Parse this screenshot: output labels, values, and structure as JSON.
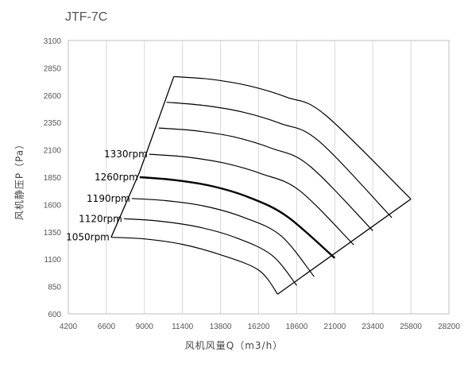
{
  "chart_data": {
    "type": "line",
    "title": "JTF-7C",
    "xlabel": "风机风量Q（m3/h）",
    "ylabel": "风机静压P（Pa）",
    "xlim": [
      4200,
      28200
    ],
    "ylim": [
      600,
      3100
    ],
    "xticks": [
      4200,
      6600,
      9000,
      11400,
      13800,
      16200,
      18600,
      21000,
      23400,
      25800,
      28200
    ],
    "yticks": [
      600,
      850,
      1100,
      1350,
      1600,
      1850,
      2100,
      2350,
      2600,
      2850,
      3100
    ],
    "grid": "vertical",
    "boundary": [
      [
        6900,
        1300
      ],
      [
        8700,
        1900
      ],
      [
        10850,
        2770
      ],
      [
        25800,
        1650
      ],
      [
        17400,
        780
      ]
    ],
    "series": [
      {
        "name": "1050rpm",
        "label_at": [
          6900,
          1300
        ],
        "bold": false,
        "points": [
          [
            6900,
            1300
          ],
          [
            9000,
            1285
          ],
          [
            11400,
            1235
          ],
          [
            13800,
            1140
          ],
          [
            16200,
            1000
          ],
          [
            17400,
            780
          ]
        ]
      },
      {
        "name": "1120rpm",
        "label_at": [
          7700,
          1470
        ],
        "bold": false,
        "points": [
          [
            7700,
            1470
          ],
          [
            9800,
            1450
          ],
          [
            12200,
            1400
          ],
          [
            14600,
            1305
          ],
          [
            17000,
            1140
          ],
          [
            18600,
            860
          ]
        ]
      },
      {
        "name": "1190rpm",
        "label_at": [
          8200,
          1655
        ],
        "bold": false,
        "points": [
          [
            8200,
            1655
          ],
          [
            10400,
            1635
          ],
          [
            12800,
            1585
          ],
          [
            15200,
            1485
          ],
          [
            17600,
            1315
          ],
          [
            19700,
            940
          ]
        ]
      },
      {
        "name": "1260rpm",
        "label_at": [
          8700,
          1850
        ],
        "bold": true,
        "points": [
          [
            8700,
            1850
          ],
          [
            10800,
            1825
          ],
          [
            13200,
            1770
          ],
          [
            15600,
            1665
          ],
          [
            18000,
            1490
          ],
          [
            21000,
            1110
          ]
        ]
      },
      {
        "name": "1330rpm",
        "label_at": [
          9300,
          2060
        ],
        "bold": false,
        "points": [
          [
            9300,
            2060
          ],
          [
            11600,
            2035
          ],
          [
            14000,
            1980
          ],
          [
            16400,
            1880
          ],
          [
            18800,
            1725
          ],
          [
            22200,
            1230
          ]
        ]
      },
      {
        "points": [
          [
            9900,
            2300
          ],
          [
            12200,
            2275
          ],
          [
            14600,
            2220
          ],
          [
            17000,
            2115
          ],
          [
            19400,
            1955
          ],
          [
            23400,
            1360
          ]
        ]
      },
      {
        "points": [
          [
            10400,
            2535
          ],
          [
            12800,
            2505
          ],
          [
            15200,
            2445
          ],
          [
            17600,
            2340
          ],
          [
            20000,
            2180
          ],
          [
            24600,
            1480
          ]
        ]
      },
      {
        "points": [
          [
            10850,
            2770
          ],
          [
            13200,
            2745
          ],
          [
            15600,
            2685
          ],
          [
            18000,
            2580
          ],
          [
            20400,
            2420
          ],
          [
            25800,
            1650
          ]
        ]
      }
    ]
  }
}
